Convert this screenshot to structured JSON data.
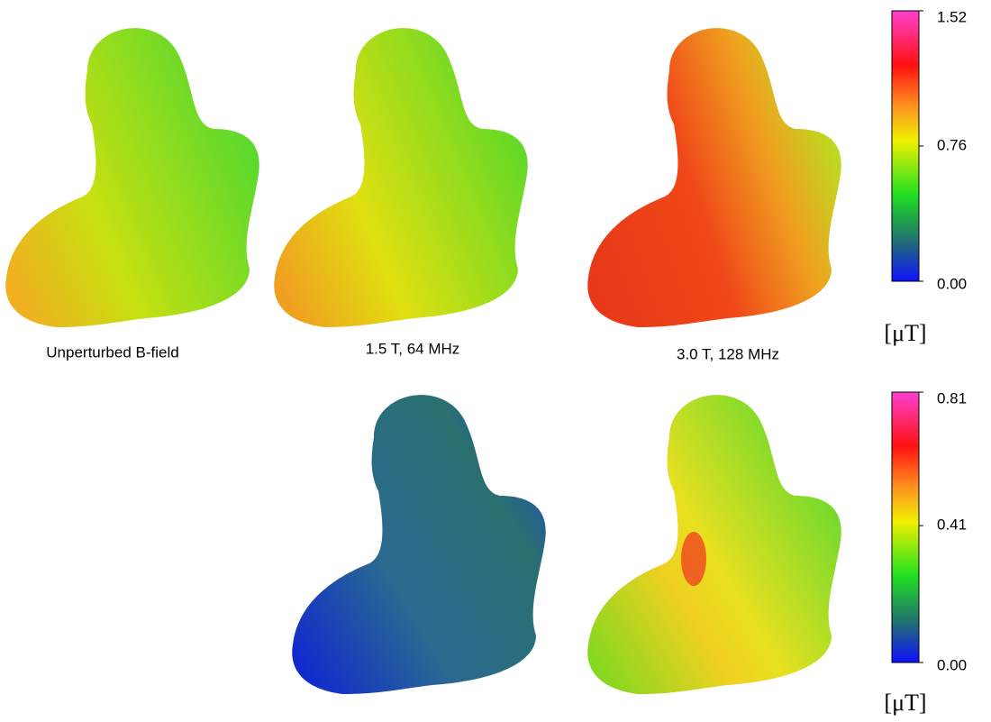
{
  "captions": [
    "Unperturbed B-field",
    "1.5 T, 64 MHz",
    "3.0 T, 128 MHz"
  ],
  "colorbars": [
    {
      "ticks": [
        {
          "value": 1.52,
          "label": "1.52"
        },
        {
          "value": 0.76,
          "label": "0.76"
        },
        {
          "value": 0,
          "label": "0.00"
        }
      ],
      "unit": "[μT]"
    },
    {
      "ticks": [
        {
          "value": 0.81,
          "label": "0.81"
        },
        {
          "value": 0.41,
          "label": "0.41"
        },
        {
          "value": 0,
          "label": "0.00"
        }
      ],
      "unit": "[μT]"
    }
  ]
}
